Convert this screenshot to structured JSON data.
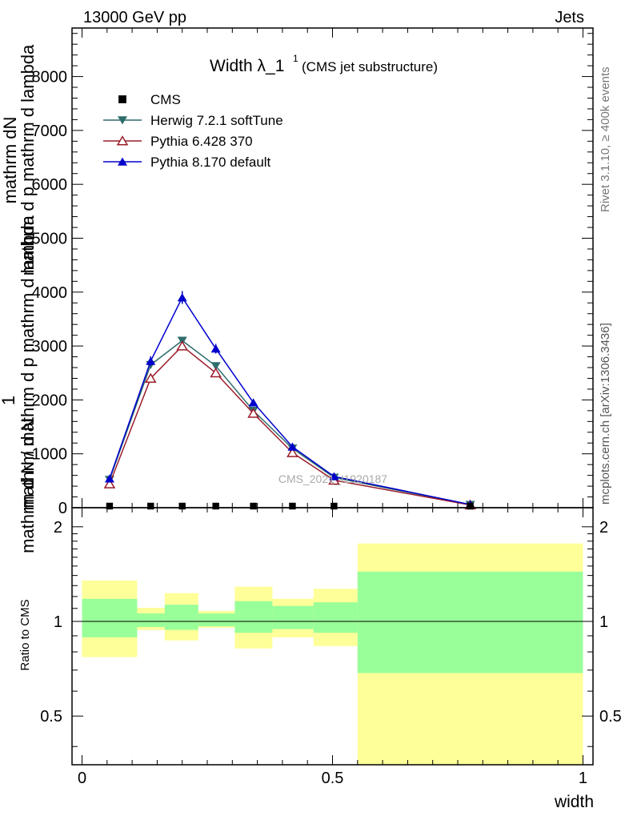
{
  "header": {
    "energy_label": "13000 GeV pp",
    "process_label": "Jets",
    "rivet_label": "Rivet 3.1.10, ≥ 400k events",
    "mcplots_label": "mcplots.cern.ch [arXiv:1306.3436]",
    "analysis_watermark": "CMS_2021_I1920187"
  },
  "chart_data": [
    {
      "type": "line",
      "title": "Width λ_1",
      "title_sup": "1",
      "subtitle": "(CMS jet substructure)",
      "ylabel_numerator": "1",
      "ylabel_denominator_top": "mathrm dN",
      "ylabel_extra": "mathrm d p mathrm d lambda",
      "ylabel_lower": "mathrm d N / mathrm d p mathrm d lambda",
      "ylabel_bottom": "mathrm d N",
      "xlim": [
        -0.02,
        1.02
      ],
      "ylim": [
        0,
        8900
      ],
      "yticks": [
        0,
        1000,
        2000,
        3000,
        4000,
        5000,
        6000,
        7000,
        8000
      ],
      "ytick_labels": [
        "0",
        "1000",
        "2000",
        "3000",
        "4000",
        "5000",
        "6000",
        "7000",
        "8000"
      ],
      "x": [
        0.055,
        0.137,
        0.2,
        0.267,
        0.342,
        0.42,
        0.503,
        0.775
      ],
      "series": [
        {
          "name": "CMS",
          "marker": "square",
          "color": "#000000",
          "values": [
            0,
            0,
            0,
            0,
            0,
            0,
            0,
            0
          ]
        },
        {
          "name": "Herwig 7.2.1 softTune",
          "marker": "triangle-down",
          "color": "#2f6c6c",
          "values": [
            520,
            2650,
            3100,
            2630,
            1800,
            1100,
            560,
            55
          ]
        },
        {
          "name": "Pythia 6.428 370",
          "marker": "triangle-up-open",
          "color": "#9b1c2b",
          "values": [
            440,
            2400,
            3000,
            2500,
            1750,
            1020,
            510,
            50
          ]
        },
        {
          "name": "Pythia 8.170 default",
          "marker": "triangle-up",
          "color": "#0000cc",
          "values": [
            540,
            2720,
            3900,
            2950,
            1950,
            1130,
            580,
            60
          ],
          "errors": [
            40,
            90,
            120,
            90,
            60,
            40,
            25,
            10
          ]
        }
      ]
    },
    {
      "type": "area",
      "ylabel": "Ratio to CMS",
      "xlabel": "width",
      "xlim": [
        -0.02,
        1.02
      ],
      "ylim": [
        0.35,
        2.3
      ],
      "yscale": "log",
      "yticks": [
        0.5,
        1,
        2
      ],
      "ytick_labels": [
        "0.5",
        "1",
        "2"
      ],
      "xticks": [
        0,
        0.5,
        1
      ],
      "xtick_labels": [
        "0",
        "0.5",
        "1"
      ],
      "reference_line": 1,
      "bins": [
        {
          "x0": 0.0,
          "x1": 0.11,
          "yellow": [
            0.77,
            1.35
          ],
          "green": [
            0.89,
            1.18
          ]
        },
        {
          "x0": 0.11,
          "x1": 0.165,
          "yellow": [
            0.94,
            1.105
          ],
          "green": [
            0.96,
            1.06
          ]
        },
        {
          "x0": 0.165,
          "x1": 0.232,
          "yellow": [
            0.87,
            1.23
          ],
          "green": [
            0.94,
            1.13
          ]
        },
        {
          "x0": 0.232,
          "x1": 0.305,
          "yellow": [
            0.955,
            1.08
          ],
          "green": [
            0.965,
            1.06
          ]
        },
        {
          "x0": 0.305,
          "x1": 0.38,
          "yellow": [
            0.82,
            1.29
          ],
          "green": [
            0.92,
            1.16
          ]
        },
        {
          "x0": 0.38,
          "x1": 0.462,
          "yellow": [
            0.89,
            1.18
          ],
          "green": [
            0.945,
            1.12
          ]
        },
        {
          "x0": 0.462,
          "x1": 0.55,
          "yellow": [
            0.835,
            1.27
          ],
          "green": [
            0.92,
            1.15
          ]
        },
        {
          "x0": 0.55,
          "x1": 1.0,
          "yellow": [
            0.35,
            1.77
          ],
          "green": [
            0.685,
            1.44
          ]
        }
      ],
      "colors": {
        "yellow": "#ffff99",
        "green": "#99ff99"
      }
    }
  ]
}
